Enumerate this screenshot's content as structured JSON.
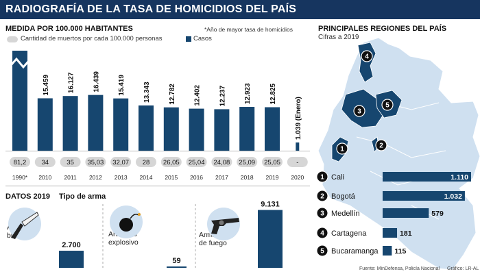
{
  "header": {
    "title": "RADIOGRAFÍA DE LA TASA DE HOMICIDIOS DEL PAÍS"
  },
  "left": {
    "title": "MEDIDA POR 100.000 HABITANTES",
    "note": "*Año de mayor tasa de homicidios",
    "legend_rate": "Cantidad de muertos por cada 100.000 personas",
    "legend_cases": "Casos"
  },
  "right": {
    "title": "PRINCIPALES REGIONES DEL PAÍS",
    "subtitle": "Cifras a 2019"
  },
  "datos": {
    "title": "DATOS 2019",
    "subtitle": "Tipo de arma"
  },
  "footer": {
    "source": "Fuente: MinDefensa, Policía Nacional",
    "credit": "Gráfico: LR-AL"
  },
  "colors": {
    "navy": "#16466f",
    "header": "#16355f",
    "map_light": "#cfe0f0",
    "map_dark": "#16466f",
    "pill": "#d6d6d6"
  },
  "chart_data": [
    {
      "type": "bar",
      "categories": [
        "1990*",
        "2010",
        "2011",
        "2012",
        "2013",
        "2014",
        "2015",
        "2016",
        "2017",
        "2018",
        "2019",
        "2020"
      ],
      "series": [
        {
          "name": "Casos",
          "values": [
            null,
            15459,
            16127,
            16439,
            15419,
            13343,
            12782,
            12402,
            12237,
            12923,
            12825,
            1039
          ]
        },
        {
          "name": "Cantidad de muertos por cada 100.000 personas",
          "values": [
            81.2,
            34,
            35,
            35.03,
            32.07,
            28,
            26.05,
            25.04,
            24.08,
            25.09,
            25.05,
            null
          ]
        }
      ],
      "value_labels": [
        "",
        "15.459",
        "16.127",
        "16.439",
        "15.419",
        "13.343",
        "12.782",
        "12.402",
        "12.237",
        "12.923",
        "12.825",
        "1.039 (Enero)"
      ],
      "rate_labels": [
        "81,2",
        "34",
        "35",
        "35,03",
        "32,07",
        "28",
        "26,05",
        "25,04",
        "24,08",
        "25,09",
        "25,05",
        "-"
      ],
      "break_first_bar": true
    },
    {
      "type": "bar",
      "title": "Tipo de arma",
      "categories": [
        "Arma blanca",
        "Artefacto explosivo",
        "Arma de fuego"
      ],
      "values": [
        2700,
        59,
        9131
      ],
      "value_labels": [
        "2.700",
        "59",
        "9.131"
      ],
      "icons": [
        "knife-icon",
        "bomb-icon",
        "revolver-icon"
      ]
    },
    {
      "type": "bar",
      "title": "PRINCIPALES REGIONES DEL PAÍS",
      "categories": [
        "Cali",
        "Bogotá",
        "Medellín",
        "Cartagena",
        "Bucaramanga"
      ],
      "ranks": [
        "1",
        "2",
        "3",
        "4",
        "5"
      ],
      "values": [
        1110,
        1032,
        579,
        181,
        115
      ],
      "value_labels": [
        "1.110",
        "1.032",
        "579",
        "181",
        "115"
      ]
    }
  ]
}
